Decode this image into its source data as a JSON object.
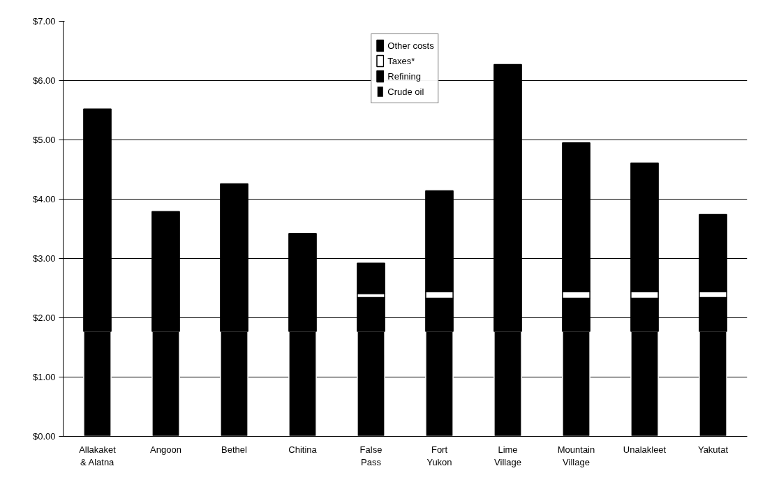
{
  "chart_data": {
    "type": "bar",
    "stacked": true,
    "categories": [
      "Allakaket\n& Alatna",
      "Angoon",
      "Bethel",
      "Chitina",
      "False\nPass",
      "Fort\nYukon",
      "Lime\nVillage",
      "Mountain\nVillage",
      "Unalakleet",
      "Yakutat"
    ],
    "series": [
      {
        "name": "Crude oil",
        "color": "#000000",
        "values": [
          1.77,
          1.77,
          1.77,
          1.77,
          1.77,
          1.77,
          1.77,
          1.77,
          1.77,
          1.77
        ]
      },
      {
        "name": "Refining",
        "color": "#000000",
        "values": [
          null,
          null,
          null,
          null,
          0.57,
          0.56,
          null,
          0.56,
          0.56,
          0.57
        ]
      },
      {
        "name": "Taxes*",
        "color": "#ffffff",
        "values": [
          null,
          null,
          null,
          null,
          0.07,
          0.11,
          null,
          0.11,
          0.11,
          0.1
        ]
      },
      {
        "name": "Other costs",
        "color": "#000000",
        "values": [
          3.75,
          2.02,
          2.49,
          1.65,
          0.51,
          1.7,
          4.5,
          2.51,
          2.17,
          1.3
        ]
      }
    ],
    "ylim": [
      0,
      7
    ],
    "yticks": [
      {
        "value": 0,
        "label": "$0.00"
      },
      {
        "value": 1,
        "label": "$1.00"
      },
      {
        "value": 2,
        "label": "$2.00"
      },
      {
        "value": 3,
        "label": "$3.00"
      },
      {
        "value": 4,
        "label": "$4.00"
      },
      {
        "value": 5,
        "label": "$5.00"
      },
      {
        "value": 6,
        "label": "$6.00"
      },
      {
        "value": 7,
        "label": "$7.00"
      }
    ],
    "grid": "y",
    "legend": "top"
  }
}
